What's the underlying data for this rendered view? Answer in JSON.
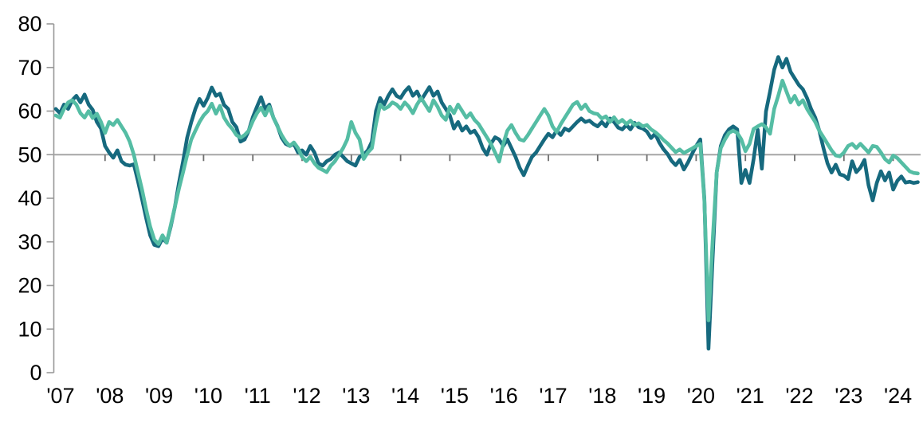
{
  "chart_data": {
    "type": "line",
    "title": "",
    "xlabel": "",
    "ylabel": "",
    "frequency": "monthly",
    "x_start": "2007-01",
    "x_end": "2024-07",
    "x_tick_labels": [
      "'07",
      "'08",
      "'09",
      "'10",
      "'11",
      "'12",
      "'13",
      "'14",
      "'15",
      "'16",
      "'17",
      "'18",
      "'19",
      "'20",
      "'21",
      "'22",
      "'23",
      "'24"
    ],
    "y_ticks": [
      0,
      10,
      20,
      30,
      40,
      50,
      60,
      70,
      80
    ],
    "ylim": [
      0,
      80
    ],
    "reference_line": 50,
    "grid": "none",
    "legend": "none",
    "axis_color": "#999999",
    "reference_line_color": "#a6a6a6",
    "tick_color": "#6e6e6e",
    "series": [
      {
        "name": "series-1-dark-teal",
        "color": "#16697E",
        "values": [
          60.5,
          59.5,
          61.5,
          60.5,
          62.5,
          63.5,
          62.0,
          63.8,
          61.5,
          60.3,
          57.5,
          56.0,
          52.0,
          50.5,
          49.3,
          51.0,
          48.5,
          47.7,
          47.5,
          47.8,
          44.0,
          39.8,
          35.5,
          31.5,
          29.3,
          29.0,
          30.8,
          29.8,
          33.5,
          38.0,
          43.5,
          48.5,
          53.9,
          57.5,
          60.5,
          62.8,
          61.2,
          63.0,
          65.4,
          63.5,
          64.0,
          61.4,
          60.5,
          57.5,
          56.3,
          53.0,
          53.5,
          55.5,
          58.6,
          61.0,
          63.2,
          60.5,
          61.5,
          58.5,
          56.6,
          53.9,
          52.5,
          52.0,
          52.5,
          50.5,
          51.0,
          50.0,
          52.0,
          50.5,
          48.0,
          47.5,
          48.5,
          49.0,
          50.0,
          50.5,
          49.5,
          48.5,
          48.0,
          47.5,
          49.5,
          50.0,
          51.0,
          53.0,
          60.0,
          63.0,
          61.5,
          63.5,
          65.0,
          63.5,
          63.0,
          64.5,
          65.5,
          63.5,
          64.5,
          62.5,
          64.0,
          65.5,
          63.5,
          64.5,
          62.0,
          60.5,
          59.0,
          56.0,
          57.5,
          55.5,
          56.5,
          55.0,
          55.5,
          54.0,
          51.5,
          50.0,
          52.5,
          54.0,
          53.5,
          52.0,
          53.5,
          51.5,
          49.5,
          47.0,
          45.3,
          47.5,
          49.5,
          50.5,
          52.0,
          53.5,
          54.8,
          54.0,
          55.5,
          54.5,
          56.0,
          55.5,
          56.5,
          57.5,
          58.3,
          57.5,
          57.8,
          57.0,
          56.5,
          57.5,
          56.5,
          58.3,
          57.5,
          56.2,
          55.8,
          56.8,
          55.8,
          57.3,
          56.3,
          56.0,
          55.3,
          53.8,
          54.8,
          52.8,
          51.3,
          50.2,
          48.6,
          47.6,
          48.8,
          46.6,
          48.2,
          50.2,
          52.0,
          53.5,
          40.0,
          5.5,
          26.0,
          46.0,
          52.0,
          54.5,
          55.8,
          56.5,
          55.8,
          43.5,
          46.5,
          43.5,
          49.0,
          55.7,
          46.8,
          59.9,
          64.5,
          69.5,
          72.4,
          70.0,
          72.0,
          69.0,
          67.5,
          66.0,
          65.0,
          63.0,
          60.5,
          58.5,
          55.5,
          51.5,
          48.0,
          45.9,
          47.7,
          45.5,
          45.2,
          44.4,
          48.5,
          46.0,
          47.0,
          48.8,
          43.0,
          39.5,
          43.5,
          46.2,
          44.1,
          45.9,
          42.0,
          44.0,
          45.0,
          43.6,
          43.8,
          43.5,
          43.7
        ]
      },
      {
        "name": "series-2-green",
        "color": "#55BDA4",
        "values": [
          59.0,
          58.5,
          60.5,
          62.0,
          62.5,
          61.5,
          59.5,
          58.5,
          60.0,
          58.4,
          59.4,
          57.5,
          55.0,
          57.5,
          56.8,
          58.0,
          56.5,
          55.0,
          53.0,
          50.0,
          46.0,
          42.0,
          37.5,
          33.5,
          30.5,
          29.5,
          31.5,
          29.8,
          33.8,
          38.0,
          42.2,
          46.0,
          49.9,
          53.5,
          55.5,
          57.5,
          59.0,
          60.0,
          61.7,
          59.4,
          61.2,
          58.5,
          57.0,
          55.9,
          54.5,
          53.9,
          54.5,
          55.5,
          57.7,
          59.5,
          60.8,
          59.0,
          61.0,
          58.5,
          56.5,
          54.5,
          53.0,
          52.0,
          52.8,
          51.5,
          49.5,
          48.5,
          49.5,
          48.0,
          47.0,
          46.5,
          46.0,
          47.5,
          48.5,
          50.0,
          51.5,
          53.5,
          57.5,
          55.0,
          53.5,
          49.0,
          50.5,
          51.5,
          57.0,
          61.5,
          60.5,
          61.0,
          62.0,
          61.5,
          60.5,
          62.0,
          61.0,
          59.5,
          61.5,
          63.0,
          61.5,
          60.0,
          62.5,
          61.0,
          59.0,
          58.0,
          61.0,
          59.5,
          61.5,
          60.0,
          58.5,
          59.5,
          58.0,
          57.0,
          55.5,
          54.0,
          52.5,
          50.5,
          48.4,
          52.5,
          55.5,
          56.8,
          55.0,
          53.5,
          53.2,
          54.5,
          56.0,
          57.5,
          59.0,
          60.5,
          59.0,
          56.5,
          55.2,
          57.0,
          58.5,
          60.0,
          61.5,
          62.1,
          60.5,
          61.5,
          60.0,
          59.5,
          59.3,
          58.3,
          58.8,
          57.5,
          58.6,
          57.3,
          58.0,
          57.0,
          57.8,
          56.8,
          57.2,
          56.5,
          56.8,
          55.8,
          55.2,
          54.4,
          53.4,
          52.6,
          51.6,
          50.6,
          51.2,
          50.4,
          50.9,
          51.4,
          52.0,
          52.5,
          39.5,
          12.0,
          30.0,
          46.0,
          51.5,
          53.5,
          55.0,
          55.5,
          55.0,
          53.5,
          50.8,
          52.5,
          55.9,
          56.5,
          57.0,
          56.3,
          54.8,
          60.5,
          63.5,
          67.0,
          64.5,
          62.0,
          63.5,
          61.5,
          62.5,
          60.5,
          59.0,
          57.5,
          55.5,
          54.0,
          52.5,
          51.0,
          49.8,
          49.6,
          50.5,
          52.0,
          52.5,
          51.5,
          52.5,
          51.5,
          50.5,
          52.0,
          51.8,
          50.5,
          49.0,
          48.2,
          49.8,
          49.2,
          48.2,
          47.2,
          46.2,
          45.8,
          45.7
        ]
      }
    ]
  }
}
